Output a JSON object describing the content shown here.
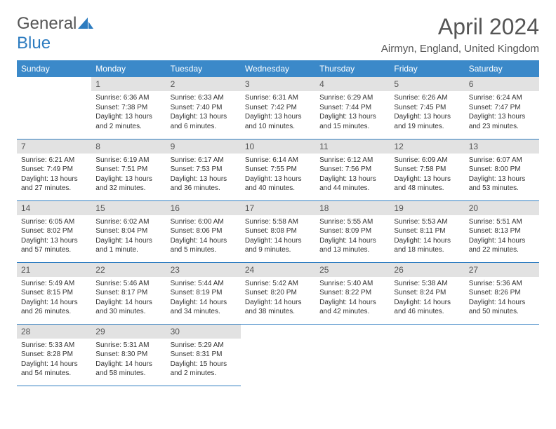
{
  "logo": {
    "text1": "General",
    "text2": "Blue",
    "color1": "#555555",
    "color2": "#2d7cc0"
  },
  "title": "April 2024",
  "location": "Airmyn, England, United Kingdom",
  "header_bg": "#3b89c9",
  "daynum_bg": "#e2e2e2",
  "border_color": "#2d7cc0",
  "weekdays": [
    "Sunday",
    "Monday",
    "Tuesday",
    "Wednesday",
    "Thursday",
    "Friday",
    "Saturday"
  ],
  "weeks": [
    [
      null,
      {
        "n": "1",
        "sr": "Sunrise: 6:36 AM",
        "ss": "Sunset: 7:38 PM",
        "dl": "Daylight: 13 hours and 2 minutes."
      },
      {
        "n": "2",
        "sr": "Sunrise: 6:33 AM",
        "ss": "Sunset: 7:40 PM",
        "dl": "Daylight: 13 hours and 6 minutes."
      },
      {
        "n": "3",
        "sr": "Sunrise: 6:31 AM",
        "ss": "Sunset: 7:42 PM",
        "dl": "Daylight: 13 hours and 10 minutes."
      },
      {
        "n": "4",
        "sr": "Sunrise: 6:29 AM",
        "ss": "Sunset: 7:44 PM",
        "dl": "Daylight: 13 hours and 15 minutes."
      },
      {
        "n": "5",
        "sr": "Sunrise: 6:26 AM",
        "ss": "Sunset: 7:45 PM",
        "dl": "Daylight: 13 hours and 19 minutes."
      },
      {
        "n": "6",
        "sr": "Sunrise: 6:24 AM",
        "ss": "Sunset: 7:47 PM",
        "dl": "Daylight: 13 hours and 23 minutes."
      }
    ],
    [
      {
        "n": "7",
        "sr": "Sunrise: 6:21 AM",
        "ss": "Sunset: 7:49 PM",
        "dl": "Daylight: 13 hours and 27 minutes."
      },
      {
        "n": "8",
        "sr": "Sunrise: 6:19 AM",
        "ss": "Sunset: 7:51 PM",
        "dl": "Daylight: 13 hours and 32 minutes."
      },
      {
        "n": "9",
        "sr": "Sunrise: 6:17 AM",
        "ss": "Sunset: 7:53 PM",
        "dl": "Daylight: 13 hours and 36 minutes."
      },
      {
        "n": "10",
        "sr": "Sunrise: 6:14 AM",
        "ss": "Sunset: 7:55 PM",
        "dl": "Daylight: 13 hours and 40 minutes."
      },
      {
        "n": "11",
        "sr": "Sunrise: 6:12 AM",
        "ss": "Sunset: 7:56 PM",
        "dl": "Daylight: 13 hours and 44 minutes."
      },
      {
        "n": "12",
        "sr": "Sunrise: 6:09 AM",
        "ss": "Sunset: 7:58 PM",
        "dl": "Daylight: 13 hours and 48 minutes."
      },
      {
        "n": "13",
        "sr": "Sunrise: 6:07 AM",
        "ss": "Sunset: 8:00 PM",
        "dl": "Daylight: 13 hours and 53 minutes."
      }
    ],
    [
      {
        "n": "14",
        "sr": "Sunrise: 6:05 AM",
        "ss": "Sunset: 8:02 PM",
        "dl": "Daylight: 13 hours and 57 minutes."
      },
      {
        "n": "15",
        "sr": "Sunrise: 6:02 AM",
        "ss": "Sunset: 8:04 PM",
        "dl": "Daylight: 14 hours and 1 minute."
      },
      {
        "n": "16",
        "sr": "Sunrise: 6:00 AM",
        "ss": "Sunset: 8:06 PM",
        "dl": "Daylight: 14 hours and 5 minutes."
      },
      {
        "n": "17",
        "sr": "Sunrise: 5:58 AM",
        "ss": "Sunset: 8:08 PM",
        "dl": "Daylight: 14 hours and 9 minutes."
      },
      {
        "n": "18",
        "sr": "Sunrise: 5:55 AM",
        "ss": "Sunset: 8:09 PM",
        "dl": "Daylight: 14 hours and 13 minutes."
      },
      {
        "n": "19",
        "sr": "Sunrise: 5:53 AM",
        "ss": "Sunset: 8:11 PM",
        "dl": "Daylight: 14 hours and 18 minutes."
      },
      {
        "n": "20",
        "sr": "Sunrise: 5:51 AM",
        "ss": "Sunset: 8:13 PM",
        "dl": "Daylight: 14 hours and 22 minutes."
      }
    ],
    [
      {
        "n": "21",
        "sr": "Sunrise: 5:49 AM",
        "ss": "Sunset: 8:15 PM",
        "dl": "Daylight: 14 hours and 26 minutes."
      },
      {
        "n": "22",
        "sr": "Sunrise: 5:46 AM",
        "ss": "Sunset: 8:17 PM",
        "dl": "Daylight: 14 hours and 30 minutes."
      },
      {
        "n": "23",
        "sr": "Sunrise: 5:44 AM",
        "ss": "Sunset: 8:19 PM",
        "dl": "Daylight: 14 hours and 34 minutes."
      },
      {
        "n": "24",
        "sr": "Sunrise: 5:42 AM",
        "ss": "Sunset: 8:20 PM",
        "dl": "Daylight: 14 hours and 38 minutes."
      },
      {
        "n": "25",
        "sr": "Sunrise: 5:40 AM",
        "ss": "Sunset: 8:22 PM",
        "dl": "Daylight: 14 hours and 42 minutes."
      },
      {
        "n": "26",
        "sr": "Sunrise: 5:38 AM",
        "ss": "Sunset: 8:24 PM",
        "dl": "Daylight: 14 hours and 46 minutes."
      },
      {
        "n": "27",
        "sr": "Sunrise: 5:36 AM",
        "ss": "Sunset: 8:26 PM",
        "dl": "Daylight: 14 hours and 50 minutes."
      }
    ],
    [
      {
        "n": "28",
        "sr": "Sunrise: 5:33 AM",
        "ss": "Sunset: 8:28 PM",
        "dl": "Daylight: 14 hours and 54 minutes."
      },
      {
        "n": "29",
        "sr": "Sunrise: 5:31 AM",
        "ss": "Sunset: 8:30 PM",
        "dl": "Daylight: 14 hours and 58 minutes."
      },
      {
        "n": "30",
        "sr": "Sunrise: 5:29 AM",
        "ss": "Sunset: 8:31 PM",
        "dl": "Daylight: 15 hours and 2 minutes."
      },
      null,
      null,
      null,
      null
    ]
  ]
}
